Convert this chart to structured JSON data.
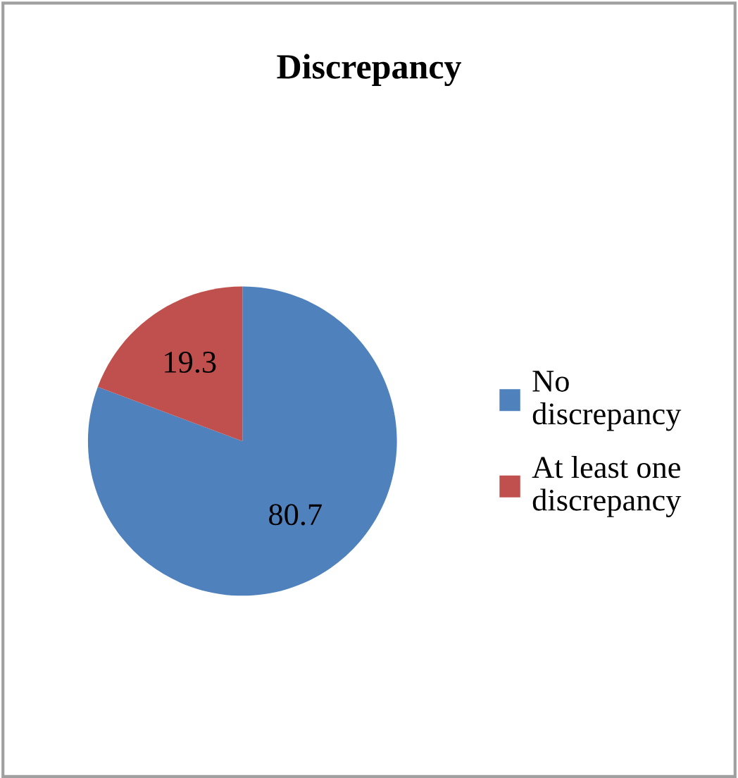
{
  "chart_data": {
    "type": "pie",
    "title": "Discrepancy",
    "categories": [
      "No\ndiscrepancy",
      "At least one\ndiscrepancy"
    ],
    "values": [
      80.7,
      19.3
    ],
    "colors": [
      "#4f81bd",
      "#c0504d"
    ],
    "data_labels": true,
    "legend": "right"
  }
}
